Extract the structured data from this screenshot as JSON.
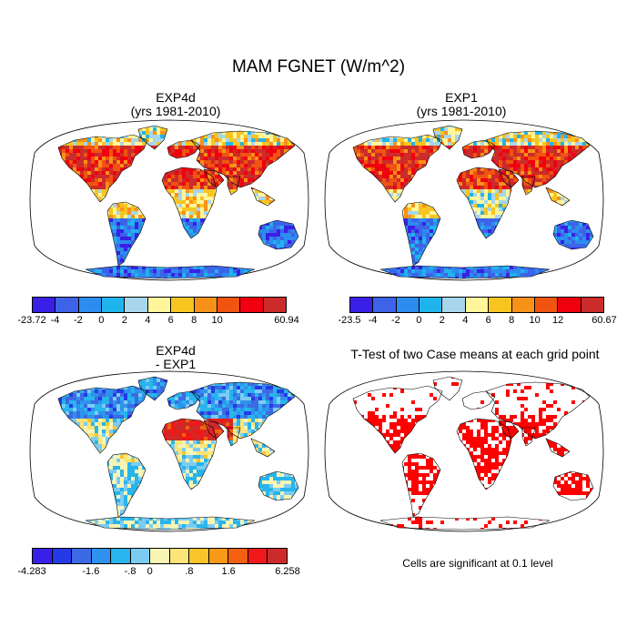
{
  "title": "MAM FGNET (W/m^2)",
  "colors": {
    "land": "#d9d9d9",
    "ocean": "#ffffff",
    "significant": "#ff0000",
    "outline": "#000000"
  },
  "panels": [
    {
      "id": "exp4d",
      "title_line1": "EXP4d",
      "title_line2": "(yrs 1981-2010)",
      "colorbar": {
        "colors": [
          "#3a1fe6",
          "#3c63e8",
          "#2c8cf0",
          "#20b4ec",
          "#a7d6ec",
          "#fff59a",
          "#f8c420",
          "#f89118",
          "#f05410",
          "#f0000e",
          "#cc2b2b"
        ],
        "labels": [
          "-23.72",
          "-4",
          "-2",
          "0",
          "2",
          "4",
          "6",
          "8",
          "10",
          "60.94"
        ],
        "label_edges": [
          0,
          1,
          2,
          3,
          4,
          5,
          6,
          7,
          8,
          11
        ]
      }
    },
    {
      "id": "exp1",
      "title_line1": "EXP1",
      "title_line2": "(yrs 1981-2010)",
      "colorbar": {
        "colors": [
          "#3a1fe6",
          "#3c63e8",
          "#2c8cf0",
          "#20b4ec",
          "#a7d6ec",
          "#fff59a",
          "#f8c420",
          "#f89118",
          "#f05410",
          "#f0000e",
          "#cc2b2b"
        ],
        "labels": [
          "-23.5",
          "-4",
          "-2",
          "0",
          "2",
          "4",
          "6",
          "8",
          "10",
          "12",
          "60.67"
        ],
        "label_edges": [
          0,
          1,
          2,
          3,
          4,
          5,
          6,
          7,
          8,
          9,
          11
        ]
      }
    },
    {
      "id": "diff",
      "title_line1": "EXP4d",
      "title_line2": "- EXP1",
      "colorbar": {
        "colors": [
          "#3a1fe6",
          "#2639e8",
          "#3c6ae4",
          "#2e92ee",
          "#28b4ec",
          "#7cccf2",
          "#f8f4b4",
          "#fde476",
          "#f9c42a",
          "#f89a18",
          "#f46010",
          "#f01818",
          "#cc2b2b"
        ],
        "labels": [
          "-4.283",
          "-1.6",
          "-.8",
          "0",
          ".8",
          "1.6",
          "6.258"
        ],
        "label_edges": [
          0,
          3,
          5,
          6,
          8,
          10,
          13
        ]
      }
    },
    {
      "id": "ttest",
      "title_line1": "T-Test of two Case means at each grid point",
      "note": "Cells are significant at 0.1 level"
    }
  ],
  "chart_data": [
    {
      "type": "heatmap",
      "title": "EXP4d (yrs 1981-2010)",
      "variable": "MAM FGNET",
      "units": "W/m^2",
      "projection": "Robinson, global",
      "color_levels": [
        -4,
        -2,
        0,
        2,
        4,
        6,
        8,
        10
      ],
      "data_range": [
        -23.72,
        60.94
      ]
    },
    {
      "type": "heatmap",
      "title": "EXP1 (yrs 1981-2010)",
      "variable": "MAM FGNET",
      "units": "W/m^2",
      "projection": "Robinson, global",
      "color_levels": [
        -4,
        -2,
        0,
        2,
        4,
        6,
        8,
        10,
        12
      ],
      "data_range": [
        -23.5,
        60.67
      ]
    },
    {
      "type": "heatmap",
      "title": "EXP4d - EXP1",
      "variable": "MAM FGNET difference",
      "units": "W/m^2",
      "projection": "Robinson, global",
      "color_levels": [
        -1.6,
        -0.8,
        0,
        0.8,
        1.6
      ],
      "data_range": [
        -4.283,
        6.258
      ]
    },
    {
      "type": "heatmap",
      "title": "T-Test of two Case means at each grid point",
      "significance_level": 0.1,
      "legend": "Cells are significant at 0.1 level"
    }
  ]
}
